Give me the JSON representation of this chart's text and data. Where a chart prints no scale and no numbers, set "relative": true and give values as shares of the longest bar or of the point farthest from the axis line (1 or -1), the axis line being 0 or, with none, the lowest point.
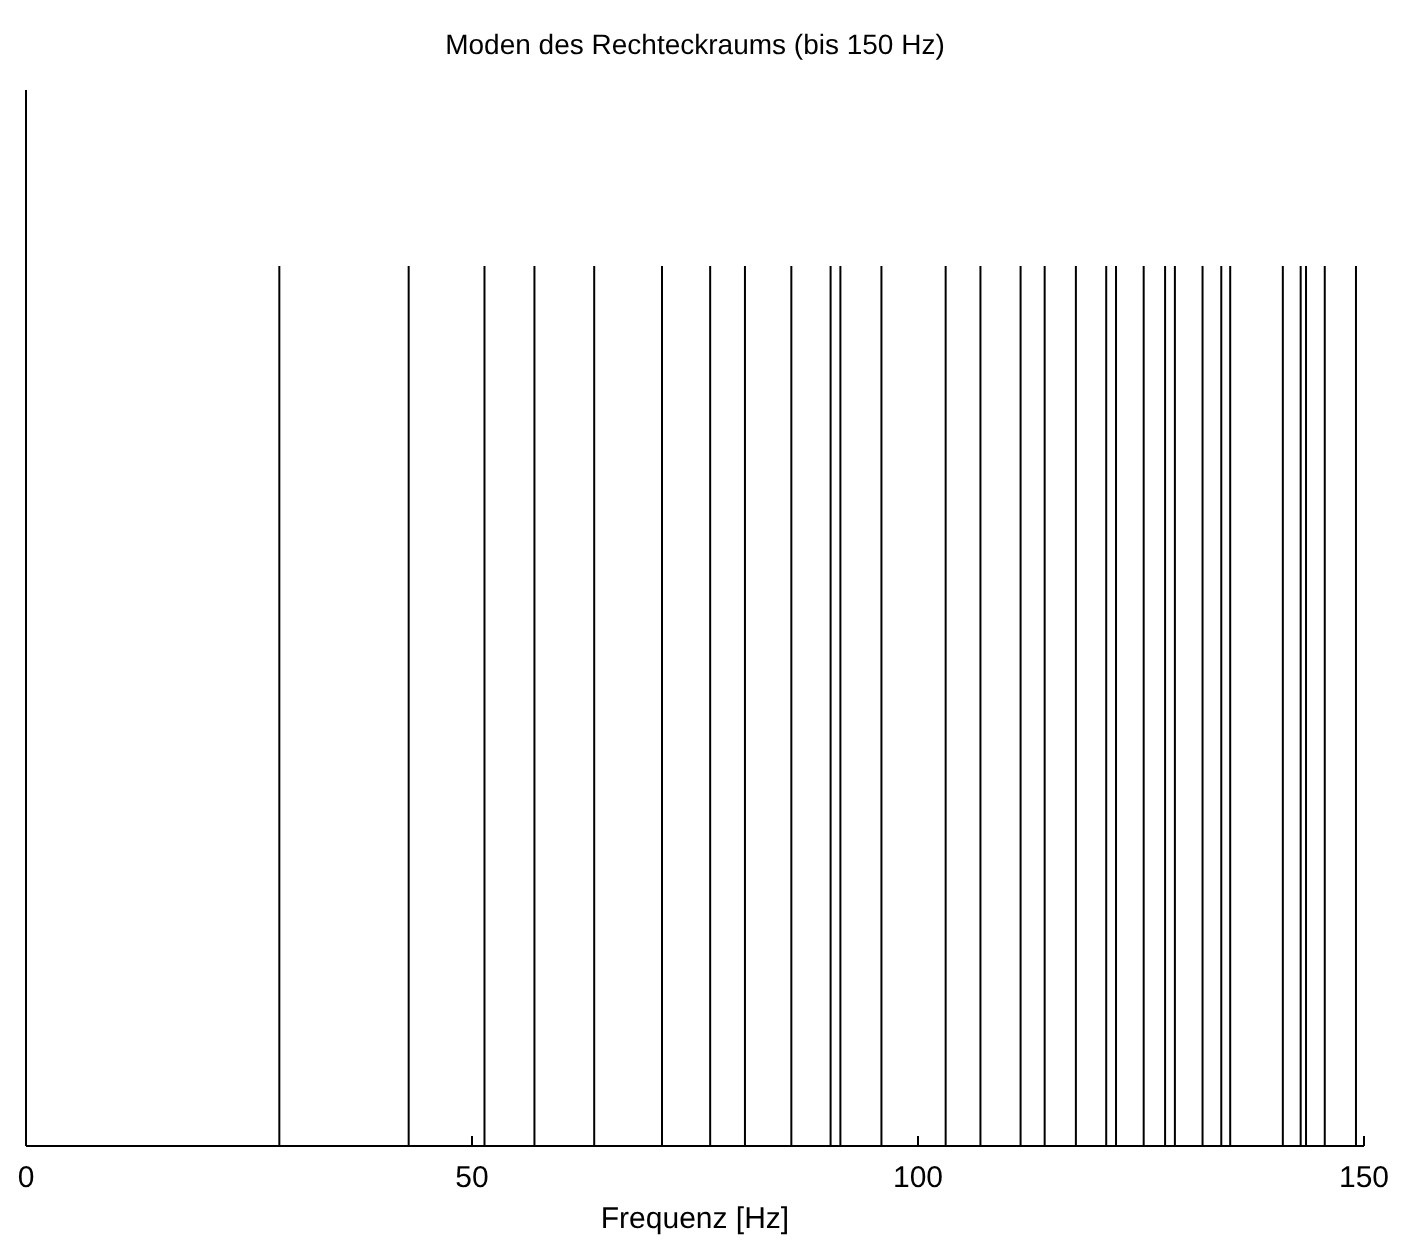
{
  "chart_data": {
    "type": "bar",
    "title": "Moden des Rechteckraums (bis 150 Hz)",
    "xlabel": "Frequenz [Hz]",
    "relative": true,
    "color": "#000000",
    "x": [
      28.4,
      42.9,
      51.4,
      57.0,
      63.7,
      71.3,
      76.7,
      80.6,
      85.8,
      90.2,
      91.3,
      95.9,
      103.1,
      107.0,
      111.5,
      114.2,
      117.7,
      121.1,
      122.2,
      125.3,
      127.7,
      128.8,
      131.9,
      134.0,
      135.0,
      140.9,
      142.9,
      143.5,
      145.6,
      149.1
    ],
    "values": [
      1,
      1,
      1,
      1,
      1,
      1,
      1,
      1,
      1,
      1,
      1,
      1,
      1,
      1,
      1,
      1,
      1,
      1,
      1,
      1,
      1,
      1,
      1,
      1,
      1,
      1,
      1,
      1,
      1,
      1
    ],
    "xlim": [
      0,
      150
    ],
    "xticks": [
      0,
      50,
      100,
      150
    ]
  }
}
